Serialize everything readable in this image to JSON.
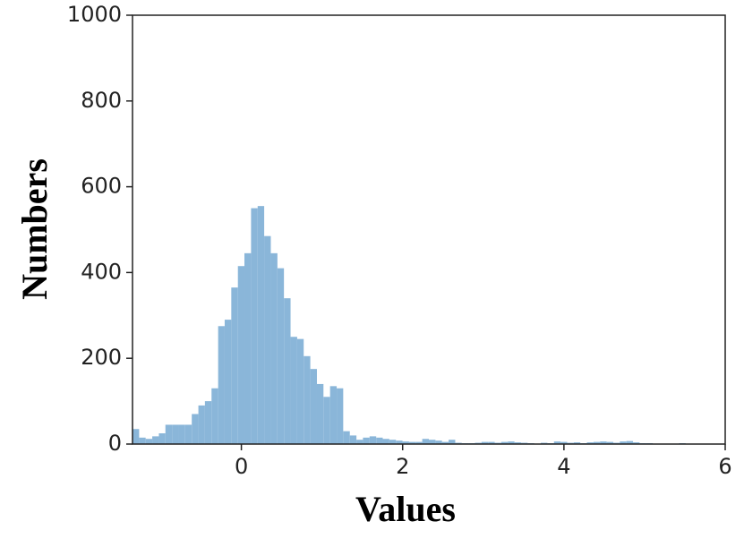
{
  "chart_data": {
    "type": "histogram",
    "x_label": "Values",
    "y_label": "Numbers",
    "color": "#8ab6d9",
    "bins": [
      -1.35,
      -1.268,
      -1.187,
      -1.105,
      -1.023,
      -0.942,
      -0.86,
      -0.778,
      -0.697,
      -0.615,
      -0.533,
      -0.452,
      -0.37,
      -0.288,
      -0.207,
      -0.125,
      -0.043,
      0.038,
      0.12,
      0.202,
      0.283,
      0.365,
      0.447,
      0.528,
      0.61,
      0.692,
      0.773,
      0.855,
      0.937,
      1.018,
      1.1,
      1.182,
      1.263,
      1.345,
      1.427,
      1.508,
      1.59,
      1.672,
      1.753,
      1.835,
      1.917,
      1.998,
      2.08,
      2.162,
      2.243,
      2.325,
      2.407,
      2.488,
      2.57,
      2.652,
      2.733,
      2.815,
      2.897,
      2.978,
      3.06,
      3.142,
      3.223,
      3.305,
      3.387,
      3.468,
      3.55,
      3.632,
      3.713,
      3.795,
      3.877,
      3.958,
      4.04,
      4.122,
      4.203,
      4.285,
      4.367,
      4.448,
      4.53,
      4.612,
      4.693,
      4.775,
      4.857,
      4.938,
      5.02,
      5.102,
      5.183,
      5.265,
      5.347,
      5.428,
      5.51,
      5.592,
      5.673,
      5.755,
      5.837,
      5.918,
      6.0
    ],
    "values": [
      35,
      15,
      12,
      18,
      25,
      45,
      45,
      45,
      45,
      70,
      90,
      100,
      130,
      275,
      290,
      365,
      415,
      445,
      550,
      555,
      485,
      445,
      410,
      340,
      250,
      245,
      205,
      175,
      140,
      110,
      135,
      130,
      30,
      20,
      10,
      15,
      18,
      15,
      12,
      10,
      8,
      6,
      5,
      5,
      12,
      10,
      8,
      5,
      10,
      3,
      2,
      2,
      3,
      5,
      5,
      3,
      5,
      6,
      4,
      3,
      2,
      1,
      3,
      2,
      6,
      5,
      3,
      4,
      2,
      4,
      5,
      6,
      5,
      3,
      6,
      7,
      4,
      2,
      2,
      1,
      1,
      1,
      1,
      2,
      1,
      0,
      0,
      0,
      1,
      0
    ],
    "xlim": [
      -1.35,
      6
    ],
    "ylim": [
      0,
      1000
    ],
    "xticks": [
      0,
      2,
      4,
      6
    ],
    "yticks": [
      0,
      200,
      400,
      600,
      800,
      1000
    ]
  }
}
